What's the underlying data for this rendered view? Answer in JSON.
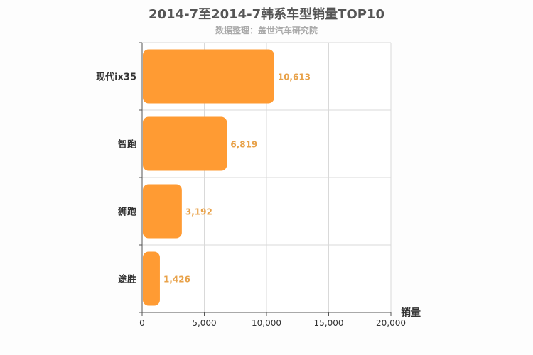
{
  "title": "2014-7至2014-7韩系车型销量TOP10",
  "subtitle": "数据整理：盖世汽车研究院",
  "chart_data": {
    "type": "bar",
    "orientation": "horizontal",
    "categories": [
      "现代ix35",
      "智跑",
      "狮跑",
      "途胜"
    ],
    "values": [
      10613,
      6819,
      3192,
      1426
    ],
    "data_labels": [
      "10,613",
      "6,819",
      "3,192",
      "1,426"
    ],
    "xlabel": "销量",
    "xlim": [
      0,
      20000
    ],
    "xticks": [
      0,
      5000,
      10000,
      15000,
      20000
    ],
    "xtick_labels": [
      "0",
      "5,000",
      "10,000",
      "15,000",
      "20,000"
    ],
    "grid": true,
    "bar_color": "#ff9b33",
    "label_color": "#e8a24a"
  }
}
